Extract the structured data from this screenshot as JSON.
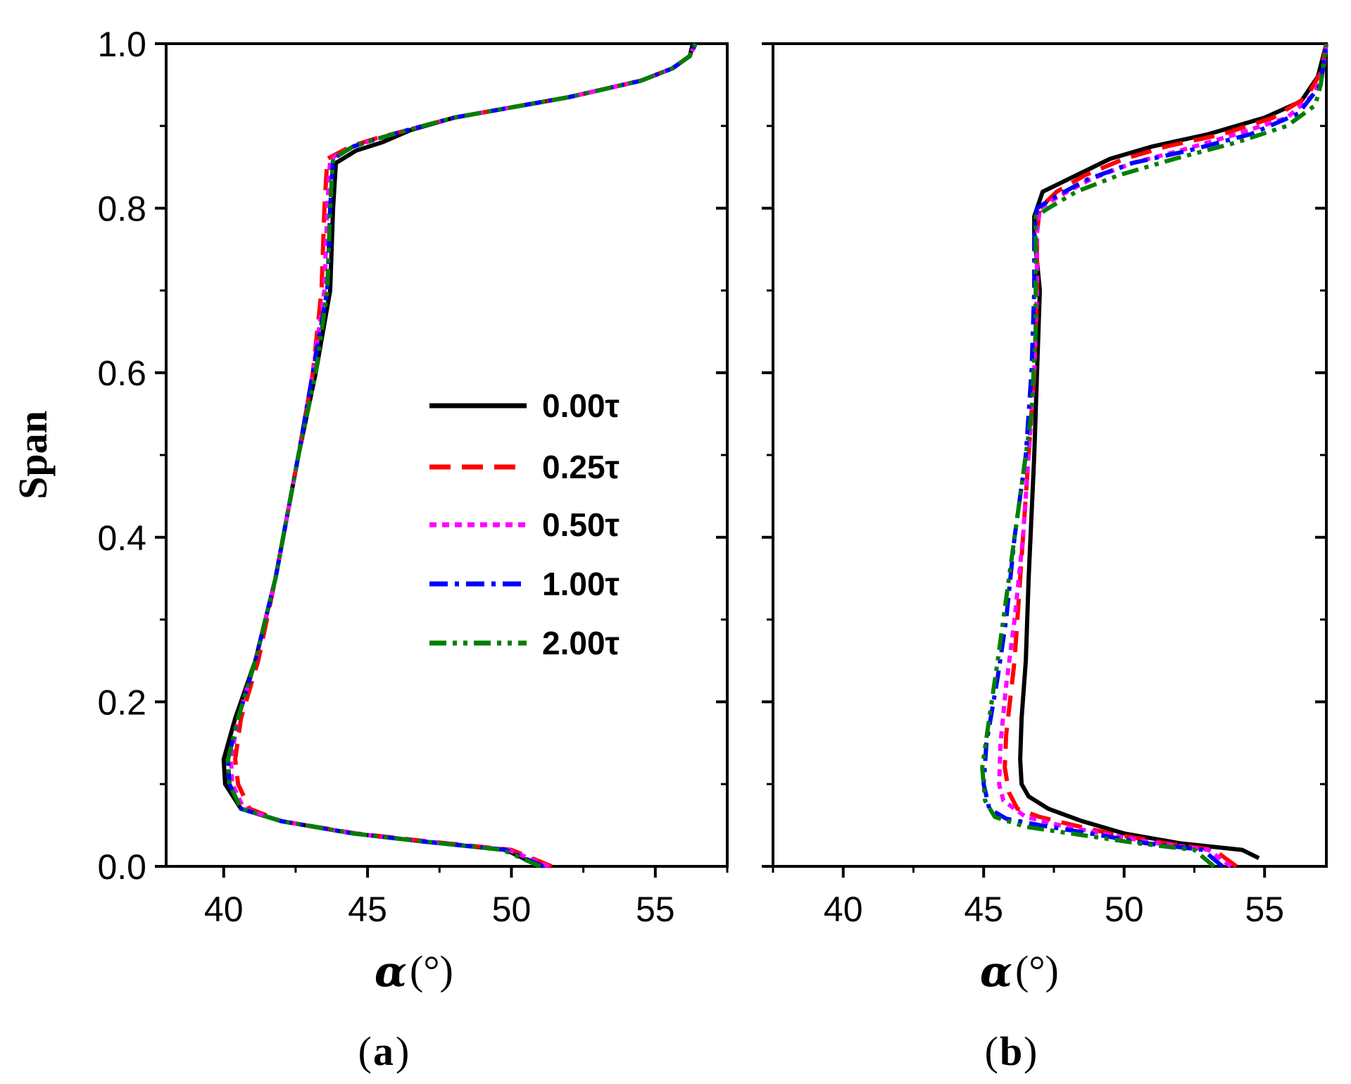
{
  "chart_data": [
    {
      "id": "a",
      "type": "line",
      "panel_label": "a",
      "ylabel": "Span",
      "xlabel_symbol": "α",
      "xlabel_unit": "(°)",
      "xlim": [
        38,
        57.5
      ],
      "ylim": [
        0,
        1
      ],
      "xticks": [
        40,
        45,
        50,
        55
      ],
      "yticks": [
        0.0,
        0.2,
        0.4,
        0.6,
        0.8,
        1.0
      ],
      "ytick_labels": [
        "0.0",
        "0.2",
        "0.4",
        "0.6",
        "0.8",
        "1.0"
      ],
      "legend": {
        "position": "center-right"
      },
      "series": [
        {
          "name": "0.00τ",
          "color": "#000000",
          "dash": "solid",
          "points": [
            [
              51.0,
              0.0
            ],
            [
              49.8,
              0.02
            ],
            [
              47.0,
              0.03
            ],
            [
              44.5,
              0.04
            ],
            [
              42.0,
              0.055
            ],
            [
              40.6,
              0.07
            ],
            [
              40.05,
              0.1
            ],
            [
              40.0,
              0.13
            ],
            [
              40.4,
              0.18
            ],
            [
              41.1,
              0.25
            ],
            [
              41.8,
              0.35
            ],
            [
              42.6,
              0.5
            ],
            [
              43.2,
              0.6
            ],
            [
              43.7,
              0.7
            ],
            [
              43.8,
              0.8
            ],
            [
              43.9,
              0.855
            ],
            [
              44.6,
              0.87
            ],
            [
              45.5,
              0.88
            ],
            [
              46.5,
              0.895
            ],
            [
              48.0,
              0.91
            ],
            [
              52.0,
              0.935
            ],
            [
              54.5,
              0.955
            ],
            [
              55.6,
              0.97
            ],
            [
              56.2,
              0.985
            ],
            [
              56.3,
              1.0
            ]
          ]
        },
        {
          "name": "0.25τ",
          "color": "#ff0000",
          "dash": "dashed",
          "points": [
            [
              51.4,
              0.0
            ],
            [
              50.0,
              0.02
            ],
            [
              47.2,
              0.03
            ],
            [
              44.6,
              0.04
            ],
            [
              42.0,
              0.055
            ],
            [
              40.9,
              0.07
            ],
            [
              40.5,
              0.1
            ],
            [
              40.4,
              0.13
            ],
            [
              40.6,
              0.18
            ],
            [
              41.2,
              0.25
            ],
            [
              41.8,
              0.35
            ],
            [
              42.6,
              0.5
            ],
            [
              43.1,
              0.6
            ],
            [
              43.4,
              0.7
            ],
            [
              43.5,
              0.8
            ],
            [
              43.6,
              0.86
            ],
            [
              44.4,
              0.875
            ],
            [
              45.3,
              0.885
            ],
            [
              46.4,
              0.895
            ],
            [
              48.0,
              0.91
            ],
            [
              52.0,
              0.935
            ],
            [
              54.5,
              0.955
            ],
            [
              55.6,
              0.97
            ],
            [
              56.2,
              0.985
            ],
            [
              56.4,
              1.0
            ]
          ]
        },
        {
          "name": "0.50τ",
          "color": "#ff00ff",
          "dash": "dotted",
          "points": [
            [
              51.3,
              0.0
            ],
            [
              49.9,
              0.02
            ],
            [
              47.1,
              0.03
            ],
            [
              44.5,
              0.04
            ],
            [
              42.0,
              0.055
            ],
            [
              40.7,
              0.07
            ],
            [
              40.3,
              0.1
            ],
            [
              40.25,
              0.13
            ],
            [
              40.5,
              0.18
            ],
            [
              41.1,
              0.25
            ],
            [
              41.8,
              0.35
            ],
            [
              42.6,
              0.5
            ],
            [
              43.1,
              0.6
            ],
            [
              43.5,
              0.7
            ],
            [
              43.6,
              0.8
            ],
            [
              43.7,
              0.86
            ],
            [
              44.5,
              0.875
            ],
            [
              45.4,
              0.885
            ],
            [
              46.4,
              0.895
            ],
            [
              48.0,
              0.91
            ],
            [
              52.0,
              0.935
            ],
            [
              54.5,
              0.955
            ],
            [
              55.6,
              0.97
            ],
            [
              56.2,
              0.985
            ],
            [
              56.4,
              1.0
            ]
          ]
        },
        {
          "name": "1.00τ",
          "color": "#0000ff",
          "dash": "dashdot",
          "points": [
            [
              51.1,
              0.0
            ],
            [
              49.8,
              0.02
            ],
            [
              47.0,
              0.03
            ],
            [
              44.5,
              0.04
            ],
            [
              42.0,
              0.055
            ],
            [
              40.6,
              0.07
            ],
            [
              40.2,
              0.1
            ],
            [
              40.15,
              0.13
            ],
            [
              40.5,
              0.18
            ],
            [
              41.1,
              0.25
            ],
            [
              41.8,
              0.35
            ],
            [
              42.6,
              0.5
            ],
            [
              43.1,
              0.6
            ],
            [
              43.6,
              0.7
            ],
            [
              43.7,
              0.8
            ],
            [
              43.8,
              0.86
            ],
            [
              44.5,
              0.875
            ],
            [
              45.4,
              0.885
            ],
            [
              46.4,
              0.895
            ],
            [
              48.0,
              0.91
            ],
            [
              52.0,
              0.935
            ],
            [
              54.5,
              0.955
            ],
            [
              55.6,
              0.97
            ],
            [
              56.2,
              0.985
            ],
            [
              56.4,
              1.0
            ]
          ]
        },
        {
          "name": "2.00τ",
          "color": "#007f00",
          "dash": "dashdotdot",
          "points": [
            [
              51.0,
              0.0
            ],
            [
              49.7,
              0.02
            ],
            [
              47.0,
              0.03
            ],
            [
              44.5,
              0.04
            ],
            [
              42.0,
              0.055
            ],
            [
              40.6,
              0.07
            ],
            [
              40.2,
              0.1
            ],
            [
              40.15,
              0.13
            ],
            [
              40.5,
              0.18
            ],
            [
              41.1,
              0.25
            ],
            [
              41.8,
              0.35
            ],
            [
              42.6,
              0.5
            ],
            [
              43.2,
              0.6
            ],
            [
              43.6,
              0.7
            ],
            [
              43.7,
              0.8
            ],
            [
              43.8,
              0.86
            ],
            [
              44.5,
              0.875
            ],
            [
              45.4,
              0.885
            ],
            [
              46.4,
              0.895
            ],
            [
              48.0,
              0.91
            ],
            [
              52.0,
              0.935
            ],
            [
              54.5,
              0.955
            ],
            [
              55.6,
              0.97
            ],
            [
              56.2,
              0.985
            ],
            [
              56.4,
              1.0
            ]
          ]
        }
      ]
    },
    {
      "id": "b",
      "type": "line",
      "panel_label": "b",
      "ylabel": "",
      "xlabel_symbol": "α",
      "xlabel_unit": "(°)",
      "xlim": [
        37.5,
        57.2
      ],
      "ylim": [
        0,
        1
      ],
      "xticks": [
        40,
        45,
        50,
        55
      ],
      "yticks": [
        0.0,
        0.2,
        0.4,
        0.6,
        0.8,
        1.0
      ],
      "ytick_labels": [],
      "series": [
        {
          "name": "0.00τ",
          "color": "#000000",
          "dash": "solid",
          "points": [
            [
              54.8,
              0.01
            ],
            [
              54.2,
              0.02
            ],
            [
              52.0,
              0.028
            ],
            [
              50.0,
              0.04
            ],
            [
              48.5,
              0.055
            ],
            [
              47.3,
              0.07
            ],
            [
              46.6,
              0.085
            ],
            [
              46.35,
              0.1
            ],
            [
              46.3,
              0.13
            ],
            [
              46.35,
              0.18
            ],
            [
              46.5,
              0.25
            ],
            [
              46.6,
              0.35
            ],
            [
              46.8,
              0.5
            ],
            [
              46.9,
              0.6
            ],
            [
              47.0,
              0.7
            ],
            [
              46.8,
              0.77
            ],
            [
              46.8,
              0.79
            ],
            [
              47.1,
              0.82
            ],
            [
              48.0,
              0.835
            ],
            [
              49.5,
              0.86
            ],
            [
              51.0,
              0.875
            ],
            [
              53.0,
              0.89
            ],
            [
              55.0,
              0.91
            ],
            [
              56.3,
              0.93
            ],
            [
              56.9,
              0.96
            ],
            [
              57.2,
              1.0
            ]
          ]
        },
        {
          "name": "0.25τ",
          "color": "#ff0000",
          "dash": "dashed",
          "points": [
            [
              54.0,
              0.0
            ],
            [
              53.2,
              0.02
            ],
            [
              51.5,
              0.028
            ],
            [
              49.5,
              0.04
            ],
            [
              48.2,
              0.05
            ],
            [
              47.0,
              0.06
            ],
            [
              46.2,
              0.07
            ],
            [
              45.9,
              0.09
            ],
            [
              45.75,
              0.12
            ],
            [
              45.8,
              0.16
            ],
            [
              46.1,
              0.25
            ],
            [
              46.3,
              0.35
            ],
            [
              46.6,
              0.5
            ],
            [
              46.8,
              0.6
            ],
            [
              46.9,
              0.7
            ],
            [
              46.9,
              0.77
            ],
            [
              47.0,
              0.8
            ],
            [
              47.6,
              0.82
            ],
            [
              48.6,
              0.84
            ],
            [
              50.0,
              0.86
            ],
            [
              51.5,
              0.875
            ],
            [
              53.5,
              0.89
            ],
            [
              55.3,
              0.91
            ],
            [
              56.5,
              0.935
            ],
            [
              57.0,
              0.965
            ],
            [
              57.2,
              1.0
            ]
          ]
        },
        {
          "name": "0.50τ",
          "color": "#ff00ff",
          "dash": "dotted",
          "points": [
            [
              53.8,
              0.0
            ],
            [
              53.0,
              0.02
            ],
            [
              51.2,
              0.028
            ],
            [
              49.2,
              0.04
            ],
            [
              47.7,
              0.05
            ],
            [
              46.5,
              0.06
            ],
            [
              45.7,
              0.08
            ],
            [
              45.55,
              0.1
            ],
            [
              45.6,
              0.15
            ],
            [
              45.8,
              0.22
            ],
            [
              46.1,
              0.3
            ],
            [
              46.4,
              0.4
            ],
            [
              46.6,
              0.5
            ],
            [
              46.8,
              0.6
            ],
            [
              46.9,
              0.7
            ],
            [
              46.9,
              0.77
            ],
            [
              47.0,
              0.8
            ],
            [
              47.7,
              0.815
            ],
            [
              48.8,
              0.835
            ],
            [
              50.3,
              0.855
            ],
            [
              52.0,
              0.87
            ],
            [
              54.0,
              0.89
            ],
            [
              55.8,
              0.91
            ],
            [
              56.8,
              0.94
            ],
            [
              57.1,
              0.97
            ],
            [
              57.2,
              1.0
            ]
          ]
        },
        {
          "name": "1.00τ",
          "color": "#0000ff",
          "dash": "dashdot",
          "points": [
            [
              53.5,
              0.0
            ],
            [
              52.8,
              0.02
            ],
            [
              50.8,
              0.028
            ],
            [
              48.8,
              0.04
            ],
            [
              47.0,
              0.05
            ],
            [
              45.8,
              0.058
            ],
            [
              45.2,
              0.07
            ],
            [
              45.0,
              0.1
            ],
            [
              45.1,
              0.15
            ],
            [
              45.5,
              0.23
            ],
            [
              45.8,
              0.3
            ],
            [
              46.1,
              0.4
            ],
            [
              46.5,
              0.5
            ],
            [
              46.7,
              0.6
            ],
            [
              46.8,
              0.7
            ],
            [
              46.8,
              0.77
            ],
            [
              46.9,
              0.8
            ],
            [
              47.6,
              0.815
            ],
            [
              48.7,
              0.835
            ],
            [
              50.3,
              0.855
            ],
            [
              52.3,
              0.87
            ],
            [
              54.5,
              0.89
            ],
            [
              56.2,
              0.915
            ],
            [
              57.0,
              0.95
            ],
            [
              57.2,
              1.0
            ]
          ]
        },
        {
          "name": "2.00τ",
          "color": "#007f00",
          "dash": "dashdotdot",
          "points": [
            [
              53.2,
              0.0
            ],
            [
              52.5,
              0.02
            ],
            [
              50.5,
              0.028
            ],
            [
              48.5,
              0.038
            ],
            [
              46.5,
              0.048
            ],
            [
              45.4,
              0.06
            ],
            [
              45.05,
              0.08
            ],
            [
              44.95,
              0.12
            ],
            [
              45.2,
              0.18
            ],
            [
              45.5,
              0.25
            ],
            [
              45.9,
              0.35
            ],
            [
              46.3,
              0.45
            ],
            [
              46.7,
              0.55
            ],
            [
              46.85,
              0.65
            ],
            [
              46.85,
              0.75
            ],
            [
              46.85,
              0.79
            ],
            [
              47.3,
              0.8
            ],
            [
              48.3,
              0.82
            ],
            [
              49.8,
              0.84
            ],
            [
              51.8,
              0.86
            ],
            [
              54.0,
              0.88
            ],
            [
              55.8,
              0.9
            ],
            [
              56.8,
              0.925
            ],
            [
              57.0,
              0.95
            ],
            [
              57.2,
              1.0
            ]
          ]
        }
      ]
    }
  ]
}
